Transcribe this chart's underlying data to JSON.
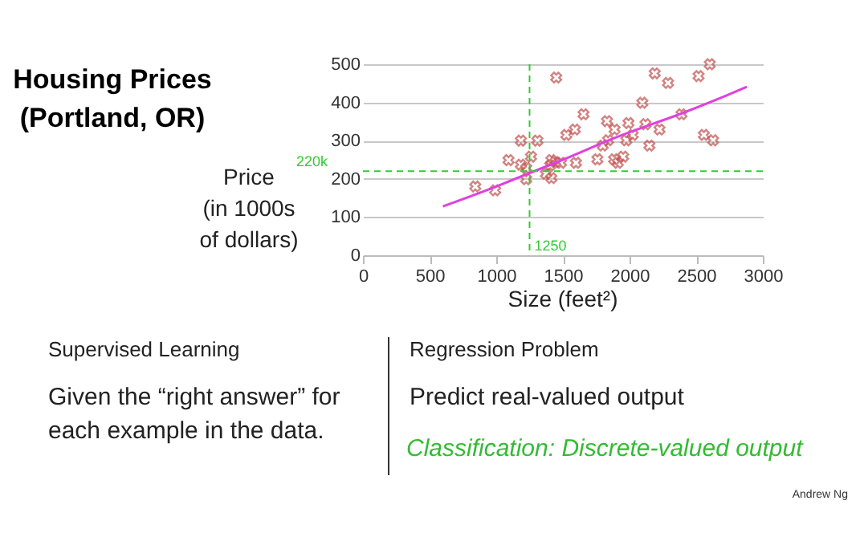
{
  "chart_data": {
    "type": "scatter",
    "title": "Housing Prices\n(Portland, OR)",
    "xlabel": "Size (feet²)",
    "ylabel": "Price\n(in 1000s\nof dollars)",
    "series": [
      {
        "color": "#c0504d",
        "marker": "cross",
        "x": [
          843,
          992,
          1092,
          1185,
          1185,
          1225,
          1225,
          1261,
          1309,
          1450,
          1373,
          1405,
          1414,
          1414,
          1442,
          1486,
          1526,
          1590,
          1598,
          1655,
          1759,
          1799,
          1831,
          1839,
          1884,
          1888,
          1912,
          1952,
          1976,
          1992,
          2024,
          2096,
          2120,
          2149,
          2189,
          2225,
          2289,
          2390,
          2518,
          2602,
          2558,
          2627
        ],
        "values": [
          180,
          170,
          249,
          300,
          237,
          228,
          199,
          258,
          300,
          465,
          213,
          235,
          249,
          202,
          244,
          242,
          315,
          329,
          242,
          369,
          251,
          287,
          351,
          301,
          251,
          329,
          242,
          258,
          301,
          346,
          315,
          399,
          343,
          287,
          476,
          329,
          451,
          369,
          469,
          500,
          315,
          301
        ]
      },
      {
        "type": "line",
        "color": "#e040e0",
        "x": [
          600,
          1000,
          1185,
          1500,
          1888,
          2418,
          2739,
          2880
        ],
        "values": [
          128,
          180,
          206,
          250,
          307,
          375,
          420,
          441
        ]
      }
    ],
    "xlim": [
      0,
      3000
    ],
    "xticks": [
      0,
      500,
      1000,
      1500,
      2000,
      2500,
      3000
    ],
    "ylim": [
      0,
      500
    ],
    "yticks": [
      0,
      100,
      200,
      300,
      400,
      500
    ],
    "grid": "y",
    "ref_lines": [
      {
        "axis": "x",
        "value": 1250,
        "label": "1250",
        "color": "#33cc33",
        "line_style": "dashed"
      },
      {
        "axis": "y",
        "value": 220,
        "label": "220k",
        "color": "#33cc33",
        "line_style": "dashed"
      }
    ],
    "annotations": [
      "Supervised Learning",
      "Given the “right answer” for\neach example in the data.",
      "Regression Problem",
      "Predict real-valued output",
      "Classification: Discrete-valued output",
      "Andrew Ng"
    ]
  }
}
